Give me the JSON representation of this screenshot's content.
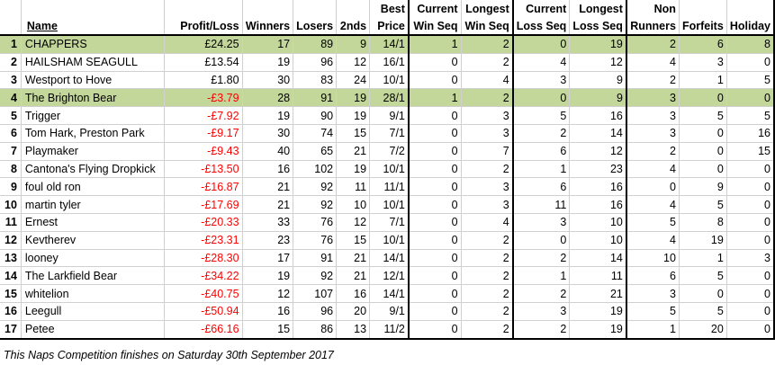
{
  "headers": {
    "row1": [
      "",
      "",
      "",
      "",
      "",
      "",
      "Best",
      "Current",
      "Longest",
      "Current",
      "Longest",
      "Non",
      "",
      ""
    ],
    "row2": [
      "",
      "Name",
      "Profit/Loss",
      "Winners",
      "Losers",
      "2nds",
      "Price",
      "Win Seq",
      "Win Seq",
      "Loss Seq",
      "Loss Seq",
      "Runners",
      "Forfeits",
      "Holiday"
    ]
  },
  "rows": [
    {
      "rank": "1",
      "name": "CHAPPERS",
      "pl": "£24.25",
      "neg": false,
      "winners": "17",
      "losers": "89",
      "seconds": "9",
      "best": "14/1",
      "cws": "1",
      "lws": "2",
      "cls": "0",
      "lls": "19",
      "nr": "2",
      "forfeits": "6",
      "holiday": "8",
      "highlight": true
    },
    {
      "rank": "2",
      "name": "HAILSHAM SEAGULL",
      "pl": "£13.54",
      "neg": false,
      "winners": "19",
      "losers": "96",
      "seconds": "12",
      "best": "16/1",
      "cws": "0",
      "lws": "2",
      "cls": "4",
      "lls": "12",
      "nr": "4",
      "forfeits": "3",
      "holiday": "0",
      "highlight": false
    },
    {
      "rank": "3",
      "name": "Westport to Hove",
      "pl": "£1.80",
      "neg": false,
      "winners": "30",
      "losers": "83",
      "seconds": "24",
      "best": "10/1",
      "cws": "0",
      "lws": "4",
      "cls": "3",
      "lls": "9",
      "nr": "2",
      "forfeits": "1",
      "holiday": "5",
      "highlight": false
    },
    {
      "rank": "4",
      "name": "The Brighton Bear",
      "pl": "-£3.79",
      "neg": true,
      "winners": "28",
      "losers": "91",
      "seconds": "19",
      "best": "28/1",
      "cws": "1",
      "lws": "2",
      "cls": "0",
      "lls": "9",
      "nr": "3",
      "forfeits": "0",
      "holiday": "0",
      "highlight": true
    },
    {
      "rank": "5",
      "name": "Trigger",
      "pl": "-£7.92",
      "neg": true,
      "winners": "19",
      "losers": "90",
      "seconds": "19",
      "best": "9/1",
      "cws": "0",
      "lws": "3",
      "cls": "5",
      "lls": "16",
      "nr": "3",
      "forfeits": "5",
      "holiday": "5",
      "highlight": false
    },
    {
      "rank": "6",
      "name": "Tom Hark, Preston Park",
      "pl": "-£9.17",
      "neg": true,
      "winners": "30",
      "losers": "74",
      "seconds": "15",
      "best": "7/1",
      "cws": "0",
      "lws": "3",
      "cls": "2",
      "lls": "14",
      "nr": "3",
      "forfeits": "0",
      "holiday": "16",
      "highlight": false
    },
    {
      "rank": "7",
      "name": "Playmaker",
      "pl": "-£9.43",
      "neg": true,
      "winners": "40",
      "losers": "65",
      "seconds": "21",
      "best": "7/2",
      "cws": "0",
      "lws": "7",
      "cls": "6",
      "lls": "12",
      "nr": "2",
      "forfeits": "0",
      "holiday": "15",
      "highlight": false
    },
    {
      "rank": "8",
      "name": "Cantona's Flying Dropkick",
      "pl": "-£13.50",
      "neg": true,
      "winners": "16",
      "losers": "102",
      "seconds": "19",
      "best": "10/1",
      "cws": "0",
      "lws": "2",
      "cls": "1",
      "lls": "23",
      "nr": "4",
      "forfeits": "0",
      "holiday": "0",
      "highlight": false
    },
    {
      "rank": "9",
      "name": "foul old ron",
      "pl": "-£16.87",
      "neg": true,
      "winners": "21",
      "losers": "92",
      "seconds": "11",
      "best": "11/1",
      "cws": "0",
      "lws": "3",
      "cls": "6",
      "lls": "16",
      "nr": "0",
      "forfeits": "9",
      "holiday": "0",
      "highlight": false
    },
    {
      "rank": "10",
      "name": "martin tyler",
      "pl": "-£17.69",
      "neg": true,
      "winners": "21",
      "losers": "92",
      "seconds": "10",
      "best": "10/1",
      "cws": "0",
      "lws": "3",
      "cls": "11",
      "lls": "16",
      "nr": "4",
      "forfeits": "5",
      "holiday": "0",
      "highlight": false
    },
    {
      "rank": "11",
      "name": "Ernest",
      "pl": "-£20.33",
      "neg": true,
      "winners": "33",
      "losers": "76",
      "seconds": "12",
      "best": "7/1",
      "cws": "0",
      "lws": "4",
      "cls": "3",
      "lls": "10",
      "nr": "5",
      "forfeits": "8",
      "holiday": "0",
      "highlight": false
    },
    {
      "rank": "12",
      "name": "Kevtherev",
      "pl": "-£23.31",
      "neg": true,
      "winners": "23",
      "losers": "76",
      "seconds": "15",
      "best": "10/1",
      "cws": "0",
      "lws": "2",
      "cls": "0",
      "lls": "10",
      "nr": "4",
      "forfeits": "19",
      "holiday": "0",
      "highlight": false
    },
    {
      "rank": "13",
      "name": "looney",
      "pl": "-£28.30",
      "neg": true,
      "winners": "17",
      "losers": "91",
      "seconds": "21",
      "best": "14/1",
      "cws": "0",
      "lws": "2",
      "cls": "2",
      "lls": "14",
      "nr": "10",
      "forfeits": "1",
      "holiday": "3",
      "highlight": false
    },
    {
      "rank": "14",
      "name": "The Larkfield Bear",
      "pl": "-£34.22",
      "neg": true,
      "winners": "19",
      "losers": "92",
      "seconds": "21",
      "best": "12/1",
      "cws": "0",
      "lws": "2",
      "cls": "1",
      "lls": "11",
      "nr": "6",
      "forfeits": "5",
      "holiday": "0",
      "highlight": false
    },
    {
      "rank": "15",
      "name": "whitelion",
      "pl": "-£40.75",
      "neg": true,
      "winners": "12",
      "losers": "107",
      "seconds": "16",
      "best": "14/1",
      "cws": "0",
      "lws": "2",
      "cls": "2",
      "lls": "21",
      "nr": "3",
      "forfeits": "0",
      "holiday": "0",
      "highlight": false
    },
    {
      "rank": "16",
      "name": "Leegull",
      "pl": "-£50.94",
      "neg": true,
      "winners": "16",
      "losers": "96",
      "seconds": "20",
      "best": "9/1",
      "cws": "0",
      "lws": "2",
      "cls": "3",
      "lls": "19",
      "nr": "5",
      "forfeits": "5",
      "holiday": "0",
      "highlight": false
    },
    {
      "rank": "17",
      "name": "Petee",
      "pl": "-£66.16",
      "neg": true,
      "winners": "15",
      "losers": "86",
      "seconds": "13",
      "best": "11/2",
      "cws": "0",
      "lws": "2",
      "cls": "2",
      "lls": "19",
      "nr": "1",
      "forfeits": "20",
      "holiday": "0",
      "highlight": false
    }
  ],
  "footer": "This Naps Competition finishes on Saturday 30th September 2017",
  "colors": {
    "highlight": "#c4d79b",
    "negative": "#ff0000"
  }
}
